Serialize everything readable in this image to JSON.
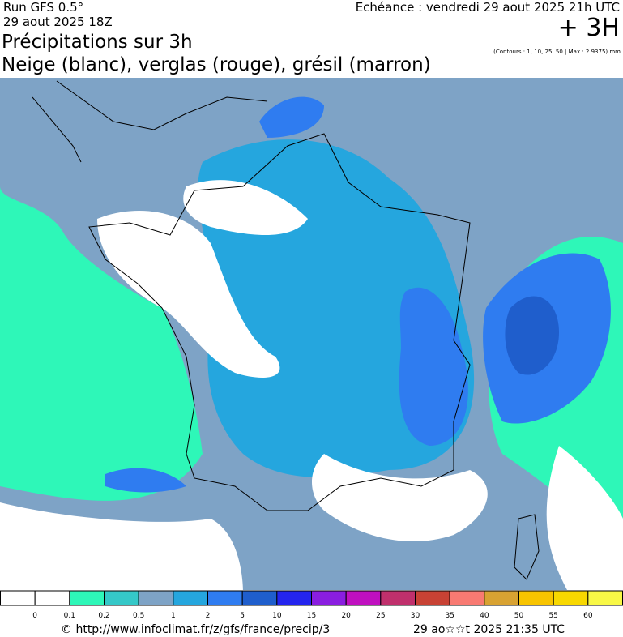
{
  "header": {
    "run": "Run GFS 0.5°",
    "run_date": "29 aout 2025 18Z",
    "echeance": "Echéance : vendredi 29 aout 2025 21h UTC",
    "offset": "+ 3H",
    "title": "Précipitations sur 3h",
    "subtitle": "Neige (blanc), verglas (rouge), grésil (marron)",
    "contours": "(Contours : 1, 10, 25, 50 | Max : 2.9375) mm"
  },
  "legend": {
    "colors": [
      "#ffffff",
      "#ffffff",
      "#2ef7b8",
      "#35c8c8",
      "#7ea3c6",
      "#25a6de",
      "#2f7cf0",
      "#1f5ecc",
      "#2424ee",
      "#8a1ee0",
      "#c010c0",
      "#c0306c",
      "#c84234",
      "#f87a72",
      "#d8a232",
      "#f8c400",
      "#f8d800",
      "#f8f846"
    ],
    "labels": [
      "0",
      "0.1",
      "0.2",
      "0.5",
      "1",
      "2",
      "5",
      "10",
      "15",
      "20",
      "25",
      "30",
      "35",
      "40",
      "50",
      "55",
      "60"
    ]
  },
  "footer": {
    "url": "© http://www.infoclimat.fr/z/gfs/france/precip/3",
    "generated": "29 ao☆☆t 2025 21:35 UTC"
  }
}
